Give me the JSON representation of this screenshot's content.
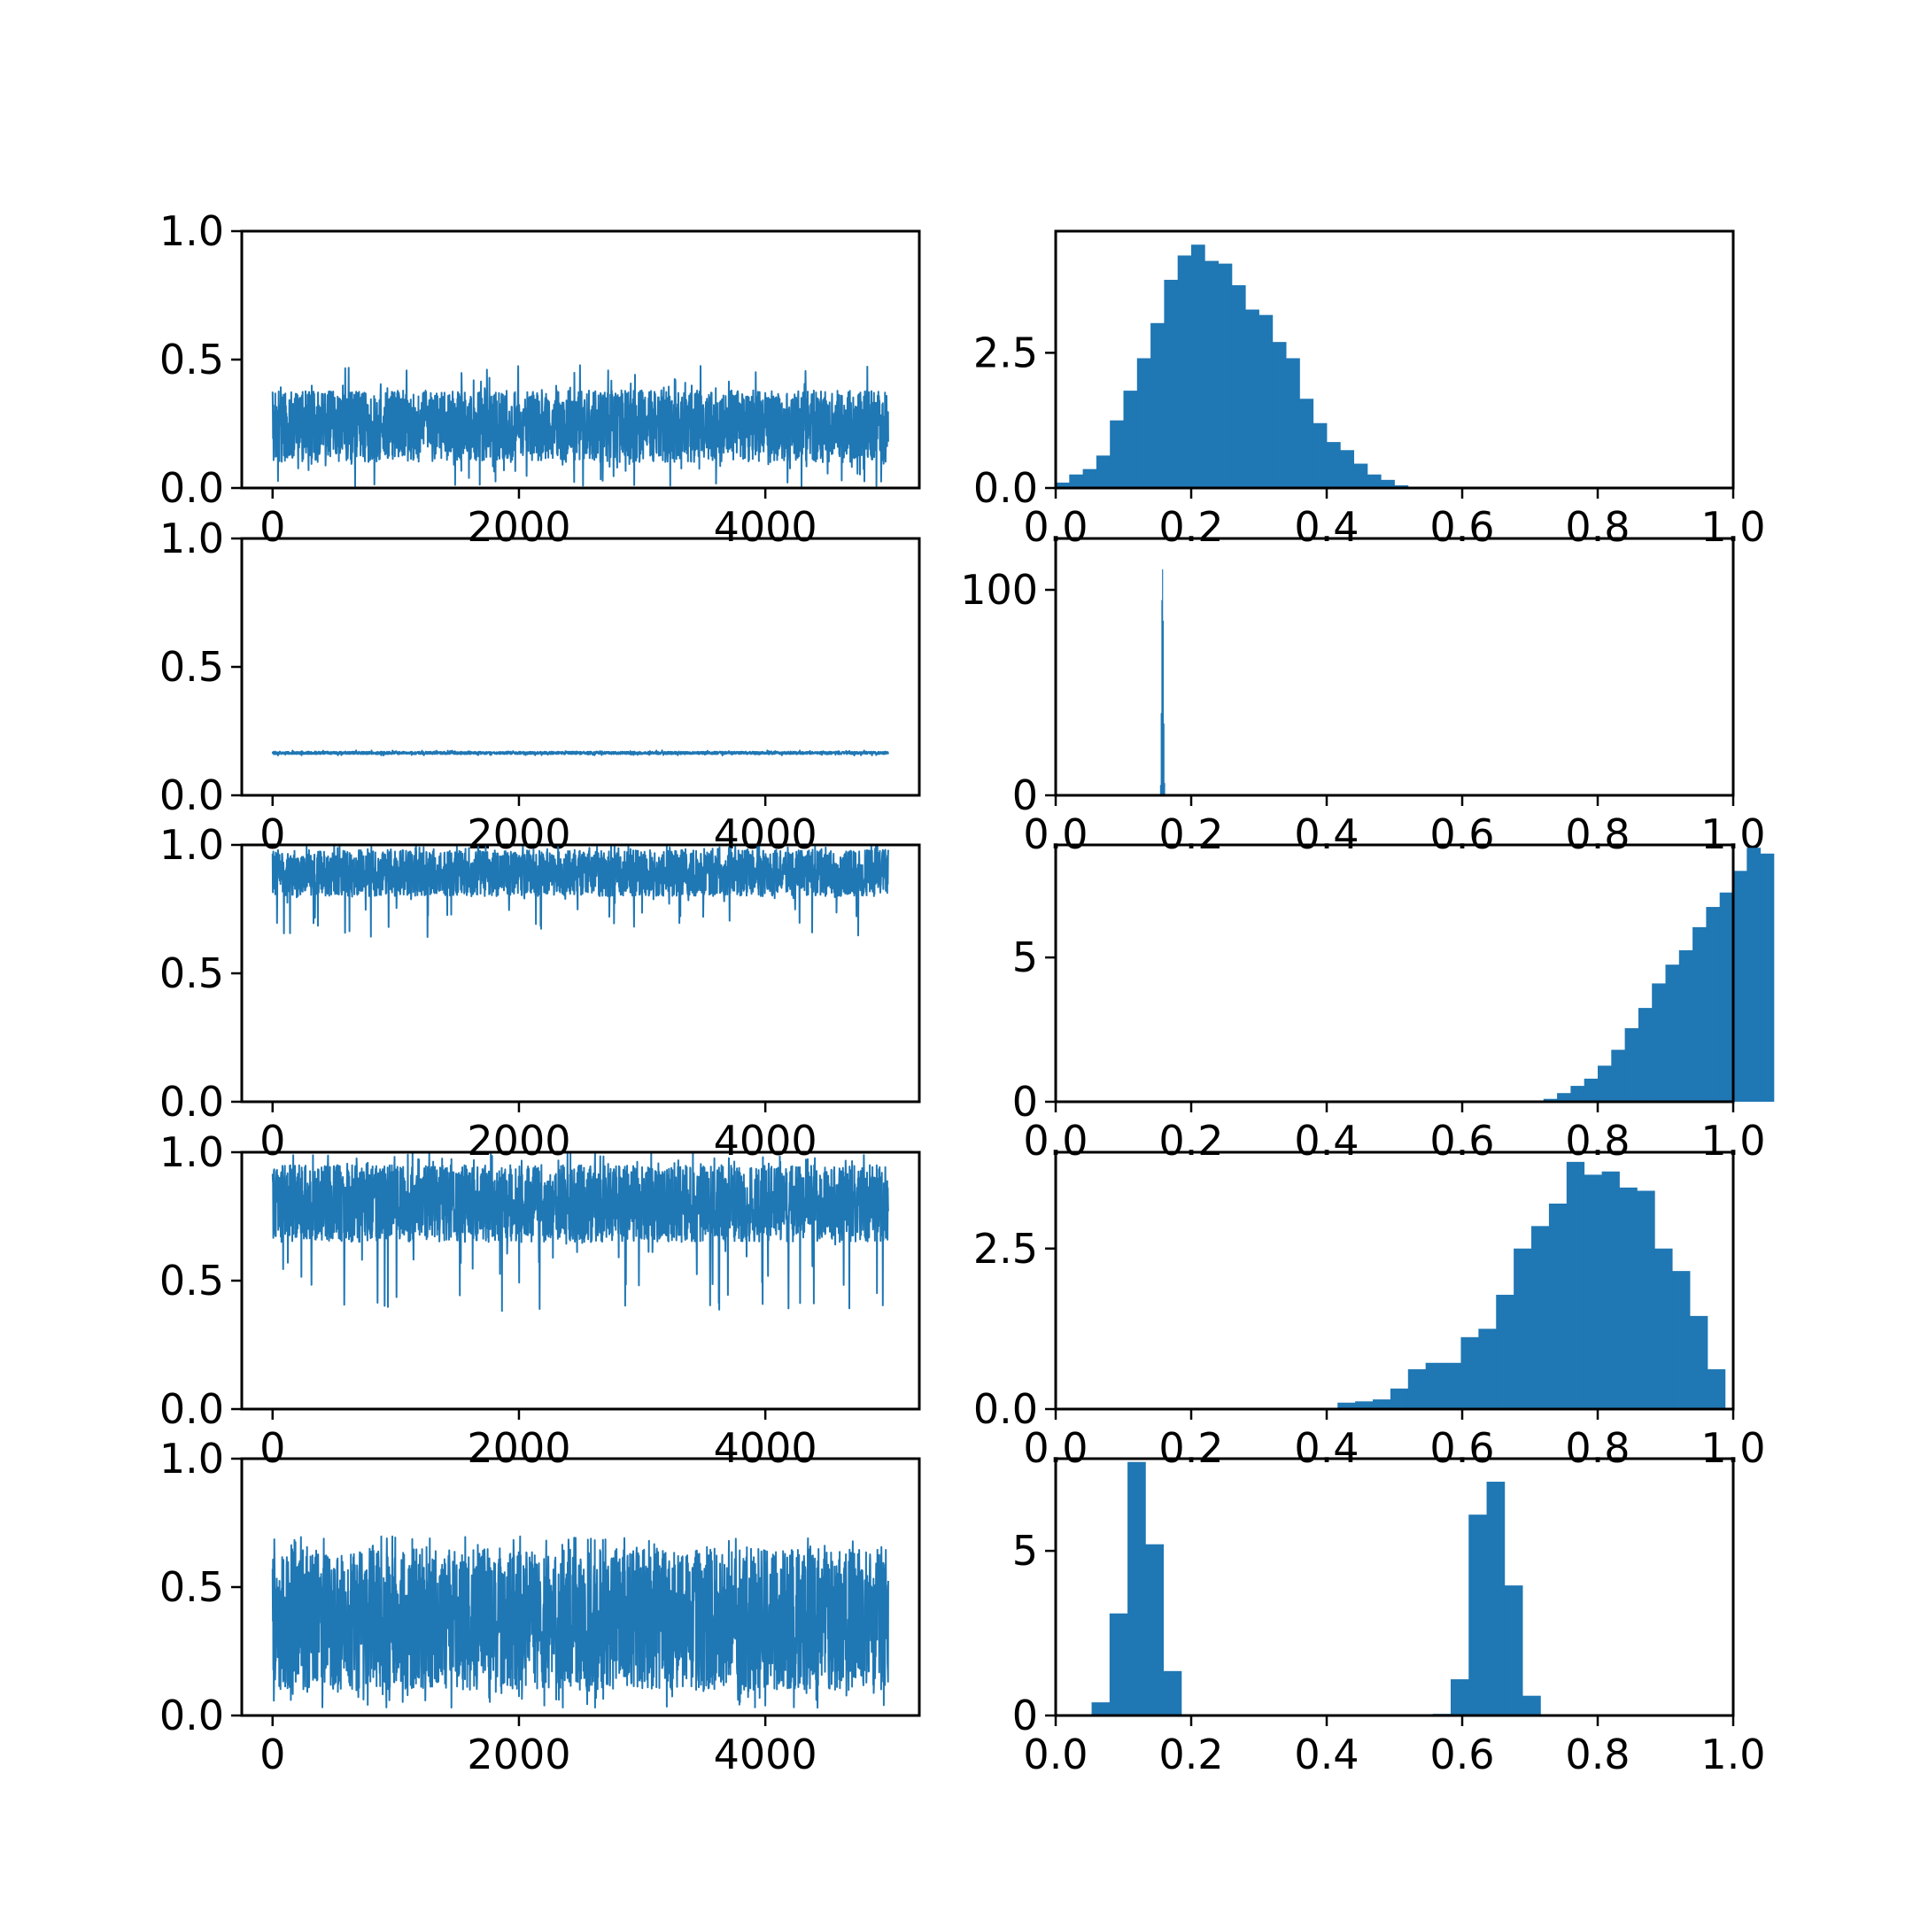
{
  "figure": {
    "series_color": "#1f77b4",
    "axes_color": "#000000",
    "background": "#ffffff"
  },
  "chart_data": [
    {
      "type": "line",
      "row": 0,
      "col": 0,
      "xlim": [
        -250,
        5250
      ],
      "ylim": [
        0.0,
        1.0
      ],
      "xticks": [
        0,
        2000,
        4000
      ],
      "xtick_labels": [
        "0",
        "2000",
        "4000"
      ],
      "yticks": [
        0.0,
        0.5,
        1.0
      ],
      "ytick_labels": [
        "0.0",
        "0.5",
        "1.0"
      ],
      "trace": {
        "n_samples": 5000,
        "band_low": 0.1,
        "band_high": 0.38,
        "min": 0.0,
        "max": 0.48
      }
    },
    {
      "type": "bar",
      "row": 0,
      "col": 1,
      "xlim": [
        0.0,
        1.0
      ],
      "ylim": [
        0.0,
        4.75
      ],
      "xticks": [
        0.0,
        0.2,
        0.4,
        0.6,
        0.8,
        1.0
      ],
      "xtick_labels": [
        "0.0",
        "0.2",
        "0.4",
        "0.6",
        "0.8",
        "1.0"
      ],
      "yticks": [
        0.0,
        2.5
      ],
      "ytick_labels": [
        "0.0",
        "2.5"
      ],
      "bin_start": 0.0,
      "bin_width": 0.02,
      "values": [
        0.1,
        0.25,
        0.35,
        0.6,
        1.25,
        1.8,
        2.4,
        3.05,
        3.85,
        4.3,
        4.5,
        4.2,
        4.15,
        3.75,
        3.3,
        3.2,
        2.7,
        2.4,
        1.65,
        1.2,
        0.85,
        0.7,
        0.45,
        0.25,
        0.15,
        0.05,
        0.0,
        0.0,
        0.0,
        0.0,
        0.0,
        0.0,
        0.0,
        0.0,
        0.0,
        0.0,
        0.0,
        0.0,
        0.0,
        0.0,
        0.0,
        0.0,
        0.0,
        0.0,
        0.0,
        0.0,
        0.0,
        0.0,
        0.0,
        0.0
      ]
    },
    {
      "type": "line",
      "row": 1,
      "col": 0,
      "xlim": [
        -250,
        5250
      ],
      "ylim": [
        0.0,
        1.0
      ],
      "xticks": [
        0,
        2000,
        4000
      ],
      "xtick_labels": [
        "0",
        "2000",
        "4000"
      ],
      "yticks": [
        0.0,
        0.5,
        1.0
      ],
      "ytick_labels": [
        "0.0",
        "0.5",
        "1.0"
      ],
      "trace": {
        "n_samples": 5000,
        "band_low": 0.16,
        "band_high": 0.17,
        "min": 0.155,
        "max": 0.175
      }
    },
    {
      "type": "bar",
      "row": 1,
      "col": 1,
      "xlim": [
        0.0,
        1.0
      ],
      "ylim": [
        0.0,
        125
      ],
      "xticks": [
        0.0,
        0.2,
        0.4,
        0.6,
        0.8,
        1.0
      ],
      "xtick_labels": [
        "0.0",
        "0.2",
        "0.4",
        "0.6",
        "0.8",
        "1.0"
      ],
      "yticks": [
        0,
        100
      ],
      "ytick_labels": [
        "0",
        "100"
      ],
      "bin_start": 0.154,
      "bin_width": 0.001,
      "values": [
        5,
        40,
        95,
        110,
        85,
        35,
        6
      ]
    },
    {
      "type": "line",
      "row": 2,
      "col": 0,
      "xlim": [
        -250,
        5250
      ],
      "ylim": [
        0.0,
        1.0
      ],
      "xticks": [
        0,
        2000,
        4000
      ],
      "xtick_labels": [
        "0",
        "2000",
        "4000"
      ],
      "yticks": [
        0.0,
        0.5,
        1.0
      ],
      "ytick_labels": [
        "0.0",
        "0.5",
        "1.0"
      ],
      "trace": {
        "n_samples": 5000,
        "band_low": 0.8,
        "band_high": 0.98,
        "min": 0.64,
        "max": 1.0
      }
    },
    {
      "type": "bar",
      "row": 2,
      "col": 1,
      "xlim": [
        0.0,
        1.0
      ],
      "ylim": [
        0.0,
        8.9
      ],
      "xticks": [
        0.0,
        0.2,
        0.4,
        0.6,
        0.8,
        1.0
      ],
      "xtick_labels": [
        "0.0",
        "0.2",
        "0.4",
        "0.6",
        "0.8",
        "1.0"
      ],
      "yticks": [
        0,
        5
      ],
      "ytick_labels": [
        "0",
        "5"
      ],
      "bin_start": 0.0,
      "bin_width": 0.02,
      "values": [
        0,
        0,
        0,
        0,
        0,
        0,
        0,
        0,
        0,
        0,
        0,
        0,
        0,
        0,
        0,
        0,
        0,
        0,
        0,
        0,
        0,
        0,
        0,
        0,
        0,
        0,
        0,
        0,
        0,
        0,
        0,
        0,
        0,
        0,
        0,
        0,
        0.1,
        0.3,
        0.55,
        0.8,
        1.25,
        1.8,
        2.55,
        3.25,
        4.1,
        4.75,
        5.25,
        6.05,
        6.75,
        7.25,
        8.0,
        8.8,
        8.6
      ]
    },
    {
      "type": "line",
      "row": 3,
      "col": 0,
      "xlim": [
        -250,
        5250
      ],
      "ylim": [
        0.0,
        1.0
      ],
      "xticks": [
        0,
        2000,
        4000
      ],
      "xtick_labels": [
        "0",
        "2000",
        "4000"
      ],
      "yticks": [
        0.0,
        0.5,
        1.0
      ],
      "ytick_labels": [
        "0.0",
        "0.5",
        "1.0"
      ],
      "trace": {
        "n_samples": 5000,
        "band_low": 0.65,
        "band_high": 0.95,
        "min": 0.38,
        "max": 1.0
      }
    },
    {
      "type": "bar",
      "row": 3,
      "col": 1,
      "xlim": [
        0.0,
        1.0
      ],
      "ylim": [
        0.0,
        4.0
      ],
      "xticks": [
        0.0,
        0.2,
        0.4,
        0.6,
        0.8,
        1.0
      ],
      "xtick_labels": [
        "0.0",
        "0.2",
        "0.4",
        "0.6",
        "0.8",
        "1.0"
      ],
      "yticks": [
        0.0,
        2.5
      ],
      "ytick_labels": [
        "0.0",
        "2.5"
      ],
      "bin_start": 0.0,
      "bin_width": 0.026,
      "values": [
        0,
        0,
        0,
        0,
        0,
        0,
        0,
        0,
        0,
        0,
        0,
        0,
        0,
        0,
        0,
        0,
        0.1,
        0.12,
        0.15,
        0.32,
        0.62,
        0.72,
        0.72,
        1.12,
        1.25,
        1.78,
        2.5,
        2.85,
        3.2,
        3.85,
        3.65,
        3.7,
        3.45,
        3.4,
        2.5,
        2.15,
        1.45,
        0.62
      ]
    },
    {
      "type": "line",
      "row": 4,
      "col": 0,
      "xlim": [
        -250,
        5250
      ],
      "ylim": [
        0.0,
        1.0
      ],
      "xticks": [
        0,
        2000,
        4000
      ],
      "xtick_labels": [
        "0",
        "2000",
        "4000"
      ],
      "yticks": [
        0.0,
        0.5,
        1.0
      ],
      "ytick_labels": [
        "0.0",
        "0.5",
        "1.0"
      ],
      "trace": {
        "n_samples": 5000,
        "band_low": 0.1,
        "band_high": 0.65,
        "min": 0.03,
        "max": 0.7
      }
    },
    {
      "type": "bar",
      "row": 4,
      "col": 1,
      "xlim": [
        0.0,
        1.0
      ],
      "ylim": [
        0.0,
        7.8
      ],
      "xticks": [
        0.0,
        0.2,
        0.4,
        0.6,
        0.8,
        1.0
      ],
      "xtick_labels": [
        "0.0",
        "0.2",
        "0.4",
        "0.6",
        "0.8",
        "1.0"
      ],
      "yticks": [
        0,
        5
      ],
      "ytick_labels": [
        "0",
        "5"
      ],
      "bin_start": 0.0,
      "bin_width": 0.0265,
      "values": [
        0,
        0,
        0.4,
        3.1,
        7.7,
        5.2,
        1.35,
        0,
        0,
        0,
        0,
        0,
        0,
        0,
        0,
        0,
        0,
        0,
        0,
        0,
        0,
        0.05,
        1.1,
        6.1,
        7.1,
        3.95,
        0.6,
        0
      ]
    }
  ]
}
